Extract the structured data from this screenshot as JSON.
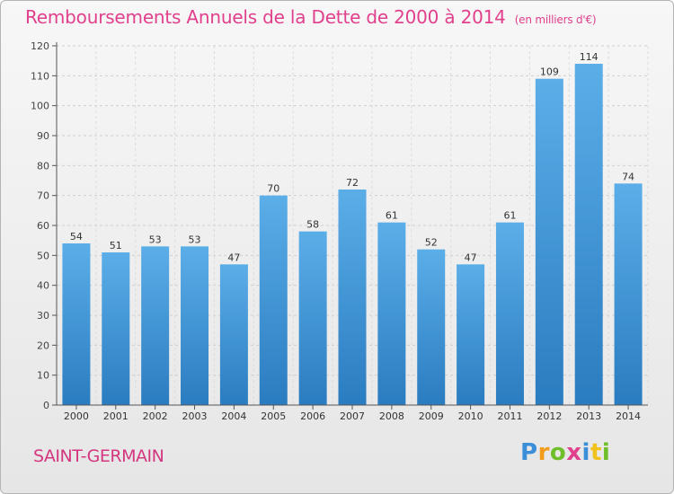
{
  "title": "Remboursements Annuels de la Dette de 2000 à 2014",
  "title_unit": "(en milliers d'€)",
  "location": "SAINT-GERMAIN",
  "logo": "Proxiti",
  "colors": {
    "bar_light": "#5baee8",
    "bar_dark": "#2a7cc0",
    "title": "#e0408c"
  },
  "chart_data": {
    "type": "bar",
    "title": "Remboursements Annuels de la Dette de 2000 à 2014",
    "categories": [
      "2000",
      "2001",
      "2002",
      "2003",
      "2004",
      "2005",
      "2006",
      "2007",
      "2008",
      "2009",
      "2010",
      "2011",
      "2012",
      "2013",
      "2014"
    ],
    "values": [
      54,
      51,
      53,
      53,
      47,
      70,
      58,
      72,
      61,
      52,
      47,
      61,
      109,
      114,
      74
    ],
    "ylim": [
      0,
      120
    ],
    "yticks": [
      0,
      10,
      20,
      30,
      40,
      50,
      60,
      70,
      80,
      90,
      100,
      110,
      120
    ],
    "grid": true,
    "xlabel": "",
    "ylabel": ""
  }
}
